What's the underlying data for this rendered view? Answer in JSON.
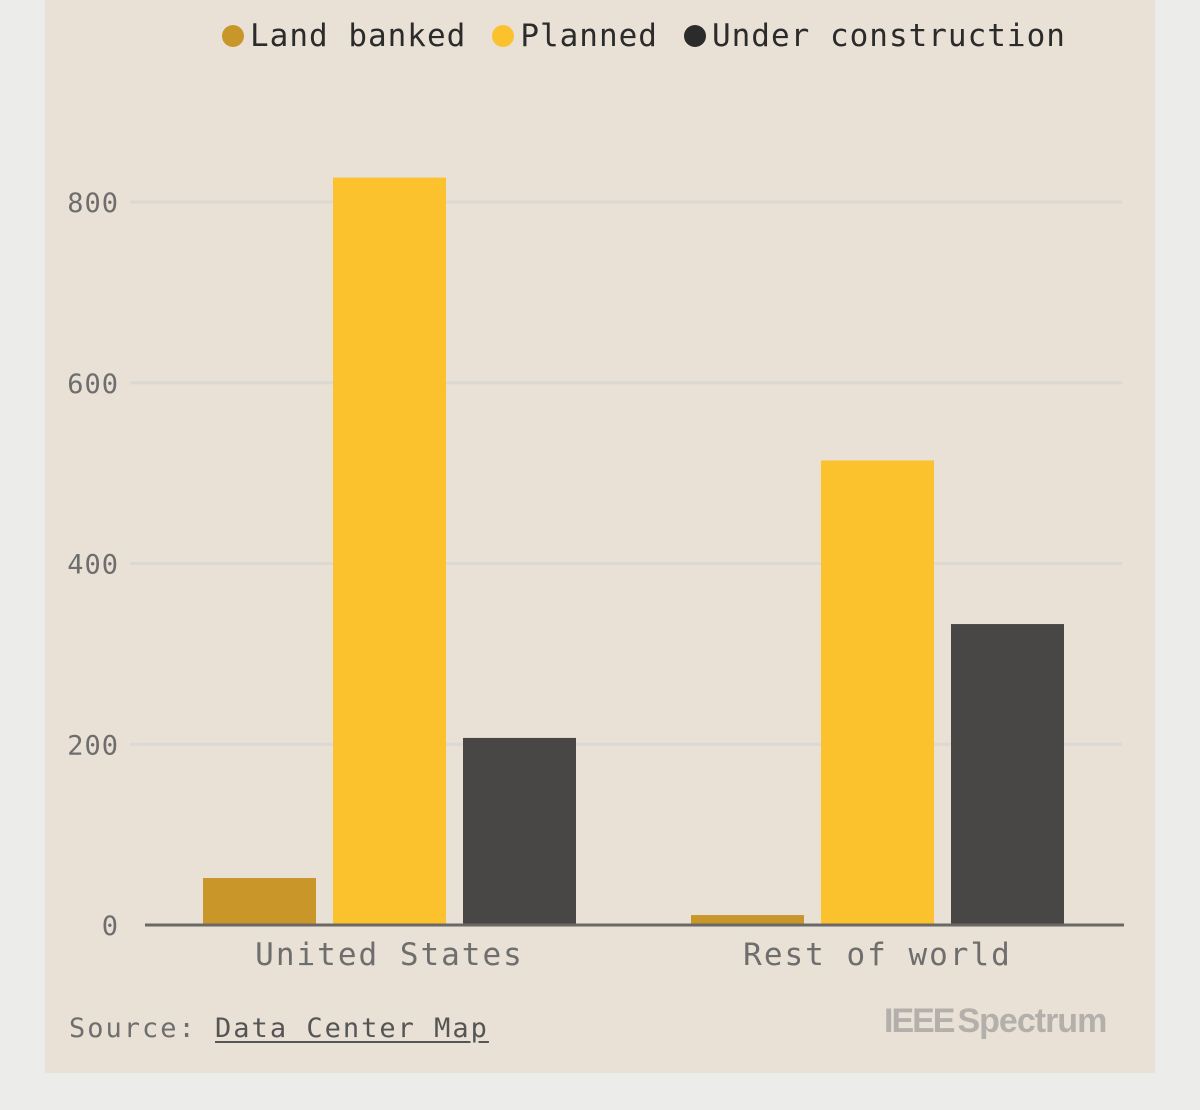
{
  "legend": [
    {
      "label": "Land banked",
      "color": "#c9962a"
    },
    {
      "label": "Planned",
      "color": "#fbc22d"
    },
    {
      "label": "Under construction",
      "color": "#484746"
    }
  ],
  "chart_data": {
    "type": "bar",
    "title": "",
    "xlabel": "",
    "ylabel": "",
    "categories": [
      "United States",
      "Rest of world"
    ],
    "series": [
      {
        "name": "Land banked",
        "color": "#c9962a",
        "values": [
          52,
          11
        ]
      },
      {
        "name": "Planned",
        "color": "#fbc22d",
        "values": [
          827,
          514
        ]
      },
      {
        "name": "Under construction",
        "color": "#484746",
        "values": [
          207,
          333
        ]
      }
    ],
    "ylim": [
      0,
      850
    ],
    "y_ticks": [
      0,
      200,
      400,
      600,
      800
    ],
    "y_tick_labels": [
      "0",
      "200",
      "400",
      "600",
      "800"
    ],
    "grid": true
  },
  "source": {
    "prefix": "Source: ",
    "link_text": "Data Center Map"
  },
  "logo": {
    "brand": "IEEE",
    "name": "Spectrum"
  }
}
